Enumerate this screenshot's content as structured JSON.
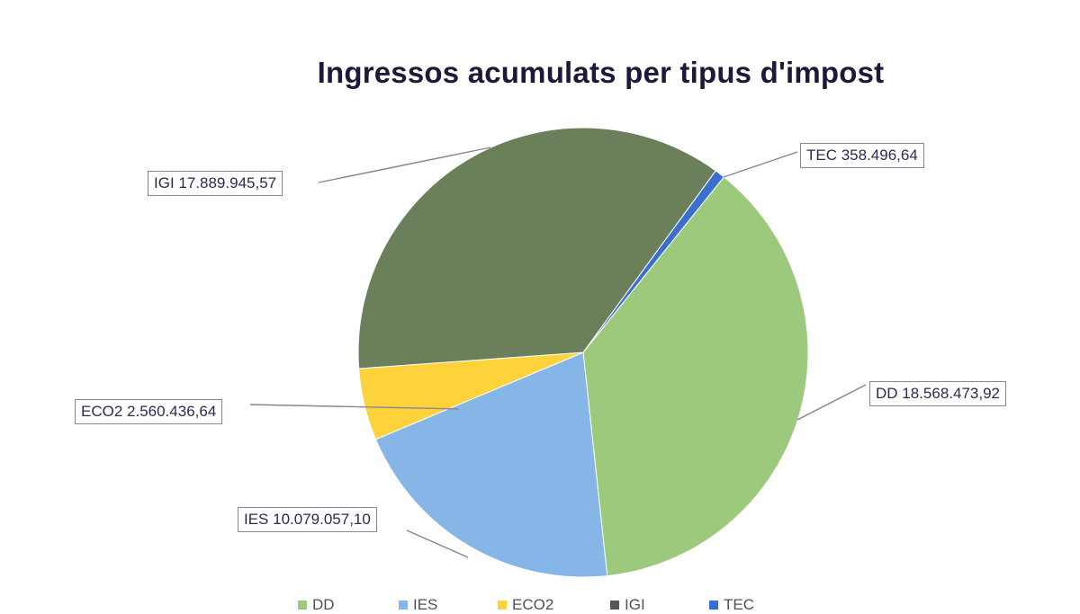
{
  "chart_data": {
    "type": "pie",
    "title": "Ingressos acumulats per tipus d'impost",
    "categories": [
      "DD",
      "IES",
      "ECO2",
      "IGI",
      "TEC"
    ],
    "values": [
      18568473.92,
      10079057.1,
      2560436.64,
      17889945.57,
      358496.64
    ],
    "value_labels": [
      "18.568.473,92",
      "10.079.057,10",
      "2.560.436,64",
      "17.889.945,57",
      "358.496,64"
    ],
    "data_labels": [
      "DD 18.568.473,92",
      "IES 10.079.057,10",
      "ECO2 2.560.436,64",
      "IGI 17.889.945,57",
      "TEC 358.496,64"
    ],
    "colors": [
      "#9dc97c",
      "#86b6e8",
      "#fdd23a",
      "#6b7f5a",
      "#3a6fd0"
    ],
    "start_angle_deg": 38.7,
    "direction": "clockwise",
    "legend_position": "bottom",
    "legend": [
      "DD",
      "IES",
      "ECO2",
      "IGI",
      "TEC"
    ]
  },
  "title": "Ingressos acumulats per tipus d'impost",
  "labels": {
    "dd": "DD 18.568.473,92",
    "ies": "IES 10.079.057,10",
    "eco2": "ECO2 2.560.436,64",
    "igi": "IGI 17.889.945,57",
    "tec": "TEC 358.496,64"
  },
  "legend": {
    "dd": "DD",
    "ies": "IES",
    "eco2": "ECO2",
    "igi": "IGI",
    "tec": "TEC"
  }
}
